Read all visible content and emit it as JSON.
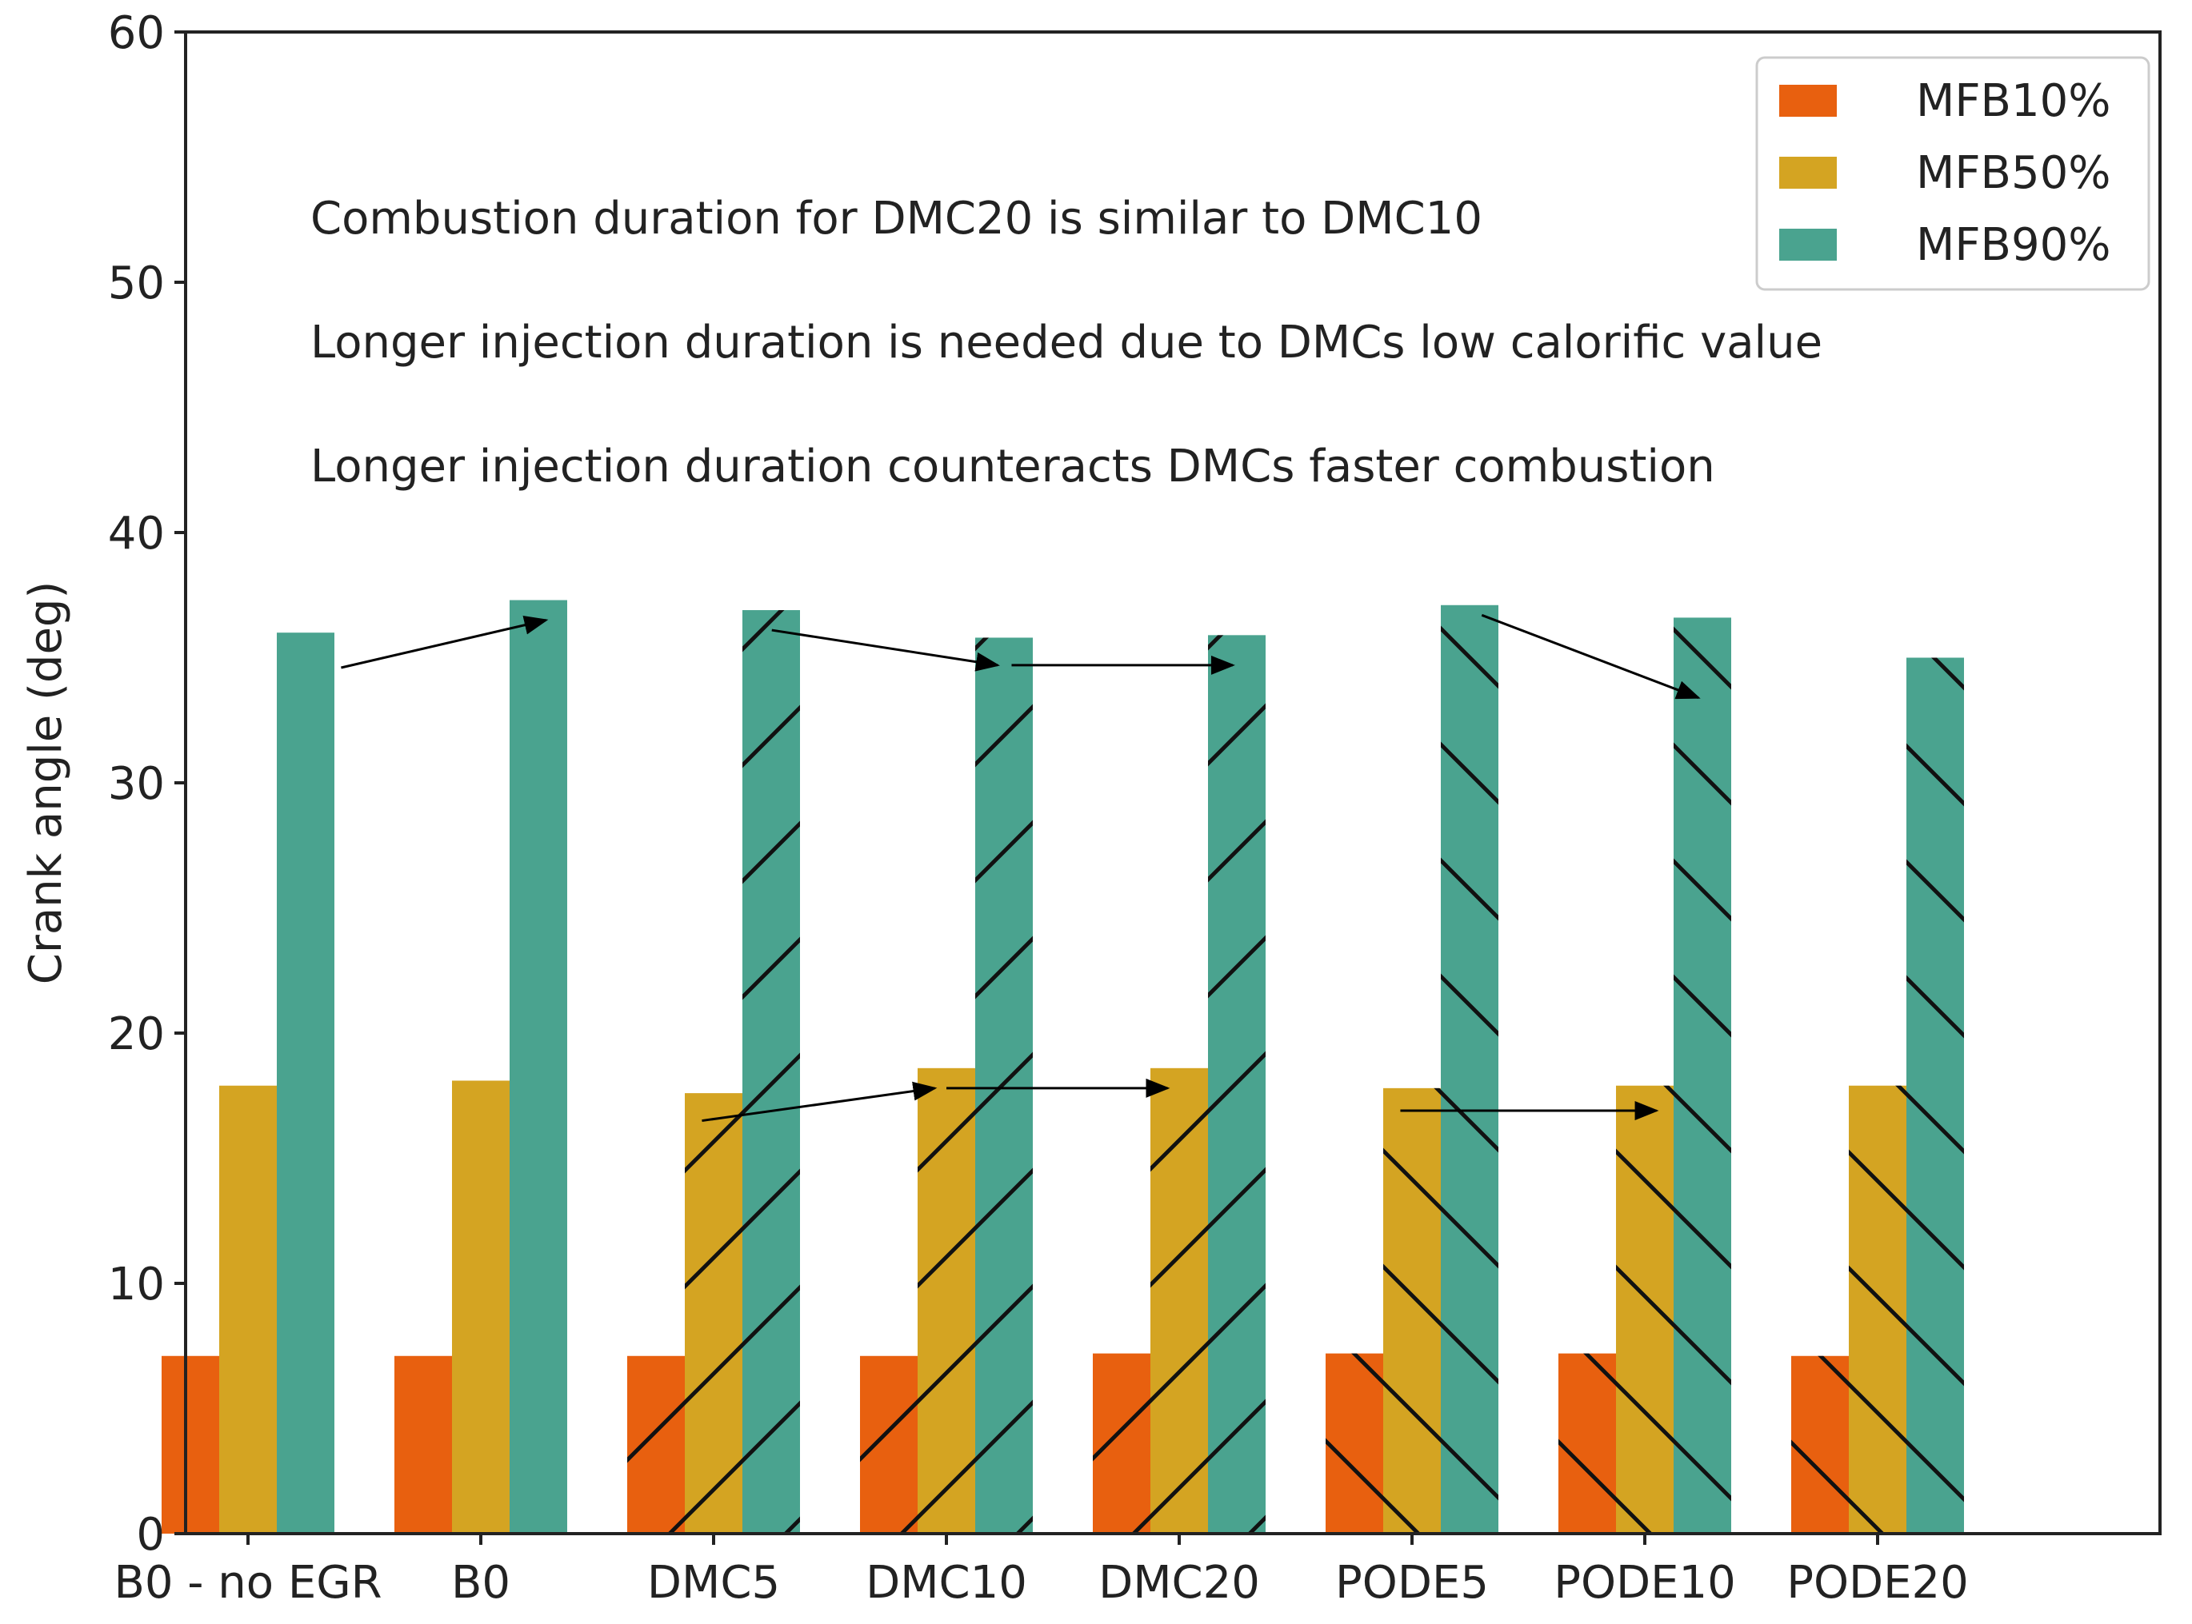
{
  "chart_data": {
    "type": "bar",
    "title": "",
    "xlabel": "",
    "ylabel": "Crank angle (deg)",
    "ylim": [
      0,
      60
    ],
    "yticks": [
      0,
      10,
      20,
      30,
      40,
      50,
      60
    ],
    "grid": false,
    "legend_position": "top-right",
    "categories": [
      "B0 - no EGR",
      "B0",
      "DMC5",
      "DMC10",
      "DMC20",
      "PODE5",
      "PODE10",
      "PODE20"
    ],
    "hatch": [
      "none",
      "none",
      "forward-diagonal",
      "forward-diagonal",
      "forward-diagonal",
      "backward-diagonal",
      "backward-diagonal",
      "backward-diagonal"
    ],
    "series": [
      {
        "name": "MFB10%",
        "color": "#e8600f",
        "values": [
          7.1,
          7.1,
          7.1,
          7.1,
          7.2,
          7.2,
          7.2,
          7.1
        ]
      },
      {
        "name": "MFB50%",
        "color": "#d4a422",
        "values": [
          17.9,
          18.1,
          17.6,
          18.6,
          18.6,
          17.8,
          17.9,
          17.9
        ]
      },
      {
        "name": "MFB90%",
        "color": "#4aa38f",
        "values": [
          36.0,
          37.3,
          36.9,
          35.8,
          35.9,
          37.1,
          36.6,
          35.0
        ]
      }
    ],
    "annotations": [
      "Combustion duration for DMC20 is similar to DMC10",
      "Longer injection duration is needed due to DMCs low calorific value",
      "Longer injection duration counteracts DMCs faster combustion"
    ],
    "arrows": [
      {
        "from": [
          0.4,
          34.6
        ],
        "to": [
          1.28,
          36.5
        ]
      },
      {
        "from": [
          2.25,
          36.1
        ],
        "to": [
          3.22,
          34.7
        ]
      },
      {
        "from": [
          3.28,
          34.7
        ],
        "to": [
          4.23,
          34.7
        ]
      },
      {
        "from": [
          5.3,
          36.7
        ],
        "to": [
          6.23,
          33.4
        ]
      },
      {
        "from": [
          1.95,
          16.5
        ],
        "to": [
          2.95,
          17.8
        ]
      },
      {
        "from": [
          3.0,
          17.8
        ],
        "to": [
          3.95,
          17.8
        ]
      },
      {
        "from": [
          4.95,
          16.9
        ],
        "to": [
          6.05,
          16.9
        ]
      }
    ]
  }
}
